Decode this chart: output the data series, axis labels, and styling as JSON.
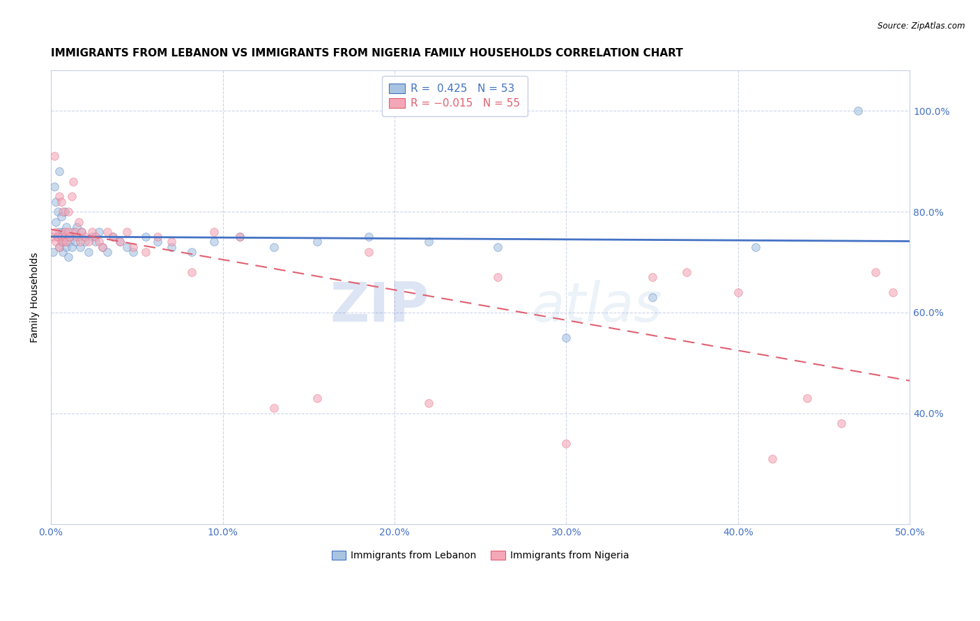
{
  "title": "IMMIGRANTS FROM LEBANON VS IMMIGRANTS FROM NIGERIA FAMILY HOUSEHOLDS CORRELATION CHART",
  "source": "Source: ZipAtlas.com",
  "ylabel": "Family Households",
  "xlim": [
    0.0,
    0.5
  ],
  "ylim": [
    0.18,
    1.08
  ],
  "color_lebanon": "#a8c4e0",
  "color_nigeria": "#f4a7b9",
  "line_color_lebanon": "#4472c4",
  "line_color_nigeria": "#e06070",
  "watermark_zip": "ZIP",
  "watermark_atlas": "atlas",
  "title_fontsize": 11,
  "axis_label_fontsize": 10,
  "tick_fontsize": 10,
  "scatter_alpha": 0.6,
  "scatter_size": 70,
  "lebanon_x": [
    0.001,
    0.002,
    0.003,
    0.003,
    0.004,
    0.004,
    0.005,
    0.005,
    0.005,
    0.006,
    0.006,
    0.007,
    0.007,
    0.008,
    0.008,
    0.009,
    0.009,
    0.01,
    0.01,
    0.011,
    0.012,
    0.013,
    0.014,
    0.015,
    0.016,
    0.017,
    0.018,
    0.02,
    0.022,
    0.024,
    0.026,
    0.028,
    0.03,
    0.033,
    0.036,
    0.04,
    0.044,
    0.048,
    0.055,
    0.062,
    0.07,
    0.082,
    0.095,
    0.11,
    0.13,
    0.155,
    0.185,
    0.22,
    0.26,
    0.3,
    0.35,
    0.41,
    0.47
  ],
  "lebanon_y": [
    0.72,
    0.85,
    0.78,
    0.82,
    0.75,
    0.8,
    0.73,
    0.76,
    0.88,
    0.74,
    0.79,
    0.72,
    0.76,
    0.74,
    0.8,
    0.73,
    0.77,
    0.71,
    0.75,
    0.74,
    0.73,
    0.76,
    0.74,
    0.77,
    0.75,
    0.73,
    0.76,
    0.74,
    0.72,
    0.75,
    0.74,
    0.76,
    0.73,
    0.72,
    0.75,
    0.74,
    0.73,
    0.72,
    0.75,
    0.74,
    0.73,
    0.72,
    0.74,
    0.75,
    0.73,
    0.74,
    0.75,
    0.74,
    0.73,
    0.55,
    0.63,
    0.73,
    1.0
  ],
  "nigeria_x": [
    0.001,
    0.002,
    0.003,
    0.003,
    0.004,
    0.005,
    0.005,
    0.006,
    0.006,
    0.007,
    0.007,
    0.008,
    0.008,
    0.009,
    0.01,
    0.01,
    0.011,
    0.012,
    0.013,
    0.014,
    0.015,
    0.016,
    0.017,
    0.018,
    0.02,
    0.022,
    0.024,
    0.026,
    0.028,
    0.03,
    0.033,
    0.036,
    0.04,
    0.044,
    0.048,
    0.055,
    0.062,
    0.07,
    0.082,
    0.095,
    0.11,
    0.13,
    0.155,
    0.185,
    0.22,
    0.26,
    0.3,
    0.35,
    0.37,
    0.4,
    0.42,
    0.44,
    0.46,
    0.48,
    0.49
  ],
  "nigeria_y": [
    0.75,
    0.91,
    0.74,
    0.76,
    0.75,
    0.73,
    0.83,
    0.75,
    0.82,
    0.74,
    0.8,
    0.76,
    0.75,
    0.74,
    0.76,
    0.8,
    0.75,
    0.83,
    0.86,
    0.76,
    0.75,
    0.78,
    0.74,
    0.76,
    0.75,
    0.74,
    0.76,
    0.75,
    0.74,
    0.73,
    0.76,
    0.75,
    0.74,
    0.76,
    0.73,
    0.72,
    0.75,
    0.74,
    0.68,
    0.76,
    0.75,
    0.41,
    0.43,
    0.72,
    0.42,
    0.67,
    0.34,
    0.67,
    0.68,
    0.64,
    0.31,
    0.43,
    0.38,
    0.68,
    0.64
  ]
}
